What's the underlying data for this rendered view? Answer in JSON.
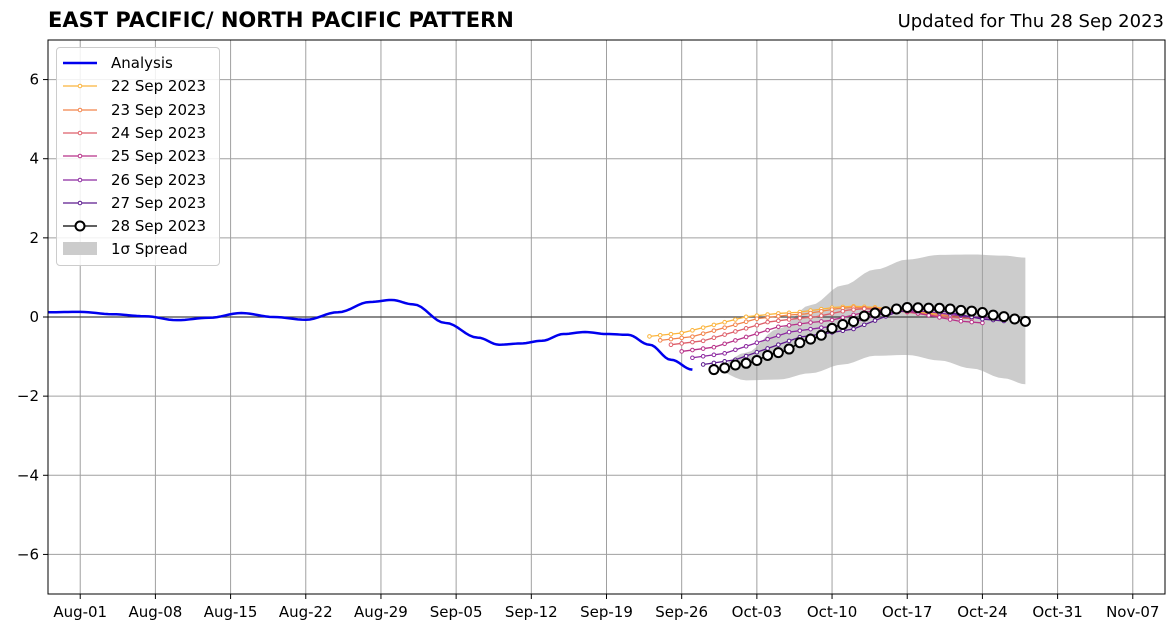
{
  "header": {
    "title": "EAST PACIFIC/ NORTH PACIFIC PATTERN",
    "updated": "Updated for Thu 28 Sep 2023"
  },
  "chart_data": {
    "type": "line",
    "title": "EAST PACIFIC/ NORTH PACIFIC PATTERN",
    "subtitle": "Updated for Thu 28 Sep 2023",
    "xlabel": "",
    "ylabel": "",
    "xlim": [
      "2023-07-29",
      "2023-11-10"
    ],
    "ylim": [
      -7,
      7
    ],
    "grid": true,
    "zero_line": true,
    "legend_position": "upper-left",
    "x_ticks": [
      "2023-08-01",
      "2023-08-08",
      "2023-08-15",
      "2023-08-22",
      "2023-08-29",
      "2023-09-05",
      "2023-09-12",
      "2023-09-19",
      "2023-09-26",
      "2023-10-03",
      "2023-10-10",
      "2023-10-17",
      "2023-10-24",
      "2023-10-31",
      "2023-11-07"
    ],
    "x_tick_labels": [
      "Aug-01",
      "Aug-08",
      "Aug-15",
      "Aug-22",
      "Aug-29",
      "Sep-05",
      "Sep-12",
      "Sep-19",
      "Sep-26",
      "Oct-03",
      "Oct-10",
      "Oct-17",
      "Oct-24",
      "Oct-31",
      "Nov-07"
    ],
    "y_ticks": [
      -6,
      -4,
      -2,
      0,
      2,
      4,
      6
    ],
    "y_tick_labels": [
      "−6",
      "−4",
      "−2",
      "0",
      "2",
      "4",
      "6"
    ],
    "legend": [
      {
        "label": "Analysis",
        "color": "#0000ee",
        "kind": "line"
      },
      {
        "label": "22 Sep 2023",
        "color": "#fbb43c",
        "kind": "marker-line"
      },
      {
        "label": "23 Sep 2023",
        "color": "#f2844b",
        "kind": "marker-line"
      },
      {
        "label": "24 Sep 2023",
        "color": "#de5f6a",
        "kind": "marker-line"
      },
      {
        "label": "25 Sep 2023",
        "color": "#b83289",
        "kind": "marker-line"
      },
      {
        "label": "26 Sep 2023",
        "color": "#8c29a0",
        "kind": "marker-line"
      },
      {
        "label": "27 Sep 2023",
        "color": "#5c1a8e",
        "kind": "marker-line"
      },
      {
        "label": "28 Sep 2023",
        "color": "#000000",
        "kind": "circle-line"
      },
      {
        "label": "1σ Spread",
        "color": "#cccccc",
        "kind": "patch"
      }
    ],
    "series": [
      {
        "name": "Analysis",
        "color": "#0000ee",
        "x": [
          "2023-07-29",
          "2023-08-01",
          "2023-08-04",
          "2023-08-07",
          "2023-08-10",
          "2023-08-13",
          "2023-08-16",
          "2023-08-19",
          "2023-08-22",
          "2023-08-25",
          "2023-08-28",
          "2023-08-30",
          "2023-09-01",
          "2023-09-04",
          "2023-09-07",
          "2023-09-09",
          "2023-09-11",
          "2023-09-13",
          "2023-09-15",
          "2023-09-17",
          "2023-09-19",
          "2023-09-21",
          "2023-09-23",
          "2023-09-25",
          "2023-09-27"
        ],
        "y": [
          0.12,
          0.13,
          0.07,
          0.02,
          -0.08,
          -0.02,
          0.1,
          0.0,
          -0.07,
          0.12,
          0.38,
          0.43,
          0.32,
          -0.15,
          -0.52,
          -0.7,
          -0.67,
          -0.6,
          -0.43,
          -0.38,
          -0.43,
          -0.45,
          -0.7,
          -1.08,
          -1.33
        ]
      },
      {
        "name": "22 Sep 2023",
        "color": "#fbb43c",
        "x": [
          "2023-09-23",
          "2023-10-05",
          "2023-10-12",
          "2023-10-21"
        ],
        "y": [
          -0.49,
          0.09,
          0.27,
          0.07
        ]
      },
      {
        "name": "23 Sep 2023",
        "color": "#f2844b",
        "x": [
          "2023-09-24",
          "2023-10-06",
          "2023-10-12",
          "2023-10-22"
        ],
        "y": [
          -0.59,
          0.05,
          0.24,
          0.02
        ]
      },
      {
        "name": "24 Sep 2023",
        "color": "#de5f6a",
        "x": [
          "2023-09-25",
          "2023-10-07",
          "2023-10-13",
          "2023-10-23"
        ],
        "y": [
          -0.7,
          -0.03,
          0.21,
          -0.04
        ]
      },
      {
        "name": "25 Sep 2023",
        "color": "#b83289",
        "x": [
          "2023-09-26",
          "2023-10-08",
          "2023-10-15",
          "2023-10-24"
        ],
        "y": [
          -0.87,
          -0.14,
          0.18,
          -0.15
        ]
      },
      {
        "name": "26 Sep 2023",
        "color": "#8c29a0",
        "x": [
          "2023-09-27",
          "2023-10-09",
          "2023-10-17",
          "2023-10-25"
        ],
        "y": [
          -1.03,
          -0.27,
          0.16,
          -0.03
        ]
      },
      {
        "name": "27 Sep 2023",
        "color": "#5c1a8e",
        "x": [
          "2023-09-28",
          "2023-10-10",
          "2023-10-18",
          "2023-10-26"
        ],
        "y": [
          -1.2,
          -0.39,
          0.21,
          -0.1
        ]
      },
      {
        "name": "28 Sep 2023",
        "color": "#000000",
        "x": [
          "2023-09-29",
          "2023-10-02",
          "2023-10-05",
          "2023-10-08",
          "2023-10-11",
          "2023-10-14",
          "2023-10-17",
          "2023-10-20",
          "2023-10-23",
          "2023-10-26",
          "2023-10-28"
        ],
        "y": [
          -1.33,
          -1.17,
          -0.9,
          -0.56,
          -0.19,
          0.1,
          0.24,
          0.22,
          0.15,
          0.01,
          -0.11
        ]
      }
    ],
    "spread": {
      "label": "1σ Spread",
      "x": [
        "2023-09-29",
        "2023-10-02",
        "2023-10-05",
        "2023-10-08",
        "2023-10-11",
        "2023-10-14",
        "2023-10-17",
        "2023-10-20",
        "2023-10-23",
        "2023-10-26",
        "2023-10-28"
      ],
      "upper": [
        -1.33,
        -0.9,
        -0.3,
        0.3,
        0.8,
        1.2,
        1.45,
        1.57,
        1.58,
        1.55,
        1.5
      ],
      "lower": [
        -1.33,
        -1.6,
        -1.58,
        -1.42,
        -1.2,
        -0.98,
        -0.96,
        -1.1,
        -1.3,
        -1.55,
        -1.7
      ]
    }
  }
}
